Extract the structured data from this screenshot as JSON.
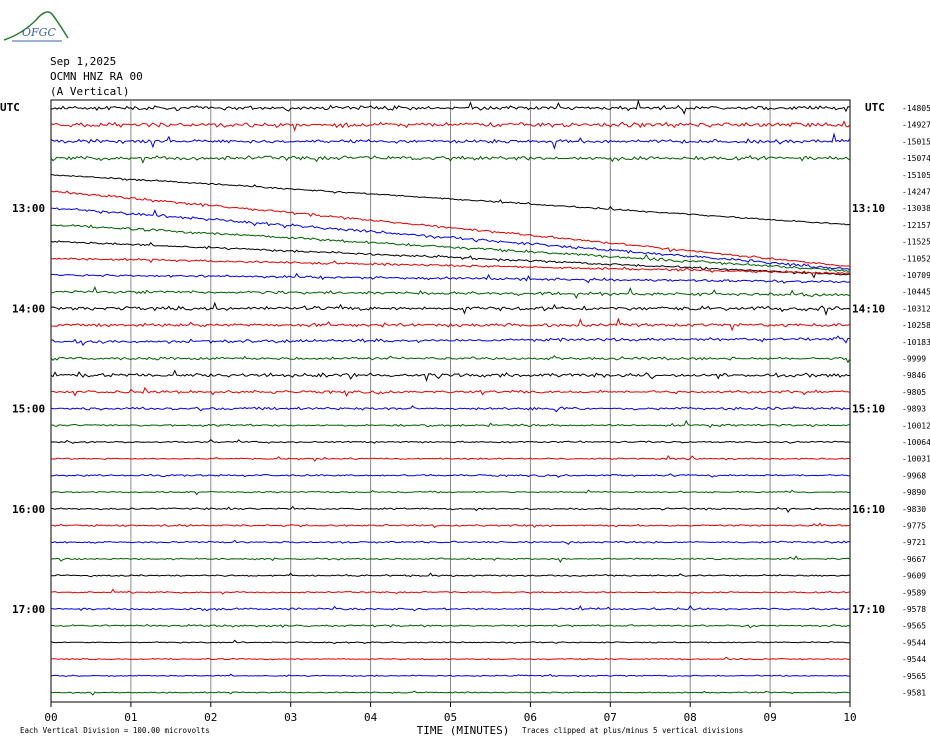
{
  "header": {
    "logo_text": "OFGC",
    "date": "Sep 1,2025",
    "station": "OCMN HNZ RA 00",
    "component": "(A Vertical)"
  },
  "chart_data": {
    "type": "line",
    "title": "",
    "left_axis_label": "UTC",
    "right_axis_label": "UTC",
    "xlabel": "TIME (MINUTES)",
    "xlim": [
      0,
      10
    ],
    "x_ticks": [
      "00",
      "01",
      "02",
      "03",
      "04",
      "05",
      "06",
      "07",
      "08",
      "09",
      "10"
    ],
    "left_time_labels": [
      "13:00",
      "14:00",
      "15:00",
      "16:00",
      "17:00"
    ],
    "right_time_labels": [
      "13:10",
      "14:10",
      "15:10",
      "16:10",
      "17:10"
    ],
    "trace_colors": [
      "#000000",
      "#e00000",
      "#0000e0",
      "#006000"
    ],
    "traces": [
      {
        "baseline": -14805,
        "start": 0,
        "end": 0,
        "noise": 1.6
      },
      {
        "baseline": -14927,
        "start": 0,
        "end": 0,
        "noise": 1.8
      },
      {
        "baseline": -15015,
        "start": 0,
        "end": 0,
        "noise": 1.5
      },
      {
        "baseline": -15074,
        "start": 0,
        "end": 0,
        "noise": 1.6
      },
      {
        "baseline": -15105,
        "start": 0,
        "end": 50,
        "noise": 0.6
      },
      {
        "baseline": -14247,
        "start": 0,
        "end": 75,
        "noise": 0.9
      },
      {
        "baseline": -13038,
        "start": 0,
        "end": 61,
        "noise": 1.2
      },
      {
        "baseline": -12157,
        "start": 0,
        "end": 46,
        "noise": 1.1
      },
      {
        "baseline": -11525,
        "start": 0,
        "end": 33,
        "noise": 0.9
      },
      {
        "baseline": -11052,
        "start": 0,
        "end": 15,
        "noise": 0.9
      },
      {
        "baseline": -10709,
        "start": 0,
        "end": 7,
        "noise": 1.0
      },
      {
        "baseline": -10445,
        "start": 0,
        "end": 3,
        "noise": 1.2
      },
      {
        "baseline": -10312,
        "start": 0,
        "end": 0,
        "noise": 1.6
      },
      {
        "baseline": -10258,
        "start": 0,
        "end": 0,
        "noise": 1.3
      },
      {
        "baseline": -10183,
        "start": 0,
        "end": -3,
        "noise": 1.3
      },
      {
        "baseline": -9999,
        "start": 0,
        "end": 0,
        "noise": 1.1
      },
      {
        "baseline": -9846,
        "start": 0,
        "end": 0,
        "noise": 1.5
      },
      {
        "baseline": -9805,
        "start": 0,
        "end": 0,
        "noise": 1.1
      },
      {
        "baseline": -9893,
        "start": 0,
        "end": 0,
        "noise": 1.1
      },
      {
        "baseline": -10012,
        "start": 0,
        "end": 0,
        "noise": 0.8
      },
      {
        "baseline": -10064,
        "start": 0,
        "end": 0,
        "noise": 0.6
      },
      {
        "baseline": -10031,
        "start": 0,
        "end": 0,
        "noise": 0.6
      },
      {
        "baseline": -9968,
        "start": 0,
        "end": 0,
        "noise": 0.7
      },
      {
        "baseline": -9890,
        "start": 0,
        "end": 0,
        "noise": 0.6
      },
      {
        "baseline": -9830,
        "start": 0,
        "end": 0,
        "noise": 0.7
      },
      {
        "baseline": -9775,
        "start": 0,
        "end": 0,
        "noise": 0.7
      },
      {
        "baseline": -9721,
        "start": 0,
        "end": 0,
        "noise": 0.7
      },
      {
        "baseline": -9667,
        "start": 0,
        "end": 0,
        "noise": 0.6
      },
      {
        "baseline": -9609,
        "start": 0,
        "end": 0,
        "noise": 0.7
      },
      {
        "baseline": -9589,
        "start": 0,
        "end": 0,
        "noise": 0.6
      },
      {
        "baseline": -9578,
        "start": 0,
        "end": 0,
        "noise": 0.8
      },
      {
        "baseline": -9565,
        "start": 0,
        "end": 0,
        "noise": 0.7
      },
      {
        "baseline": -9544,
        "start": 0,
        "end": 0,
        "noise": 0.5
      },
      {
        "baseline": -9544,
        "start": 0,
        "end": 0,
        "noise": 0.5
      },
      {
        "baseline": -9565,
        "start": 0,
        "end": 0,
        "noise": 0.5
      },
      {
        "baseline": -9581,
        "start": 0,
        "end": 0,
        "noise": 0.5
      }
    ],
    "footer_left": "Each Vertical Division =  100.00 microvolts",
    "footer_right": "Traces clipped at plus/minus 5 vertical divisions"
  }
}
